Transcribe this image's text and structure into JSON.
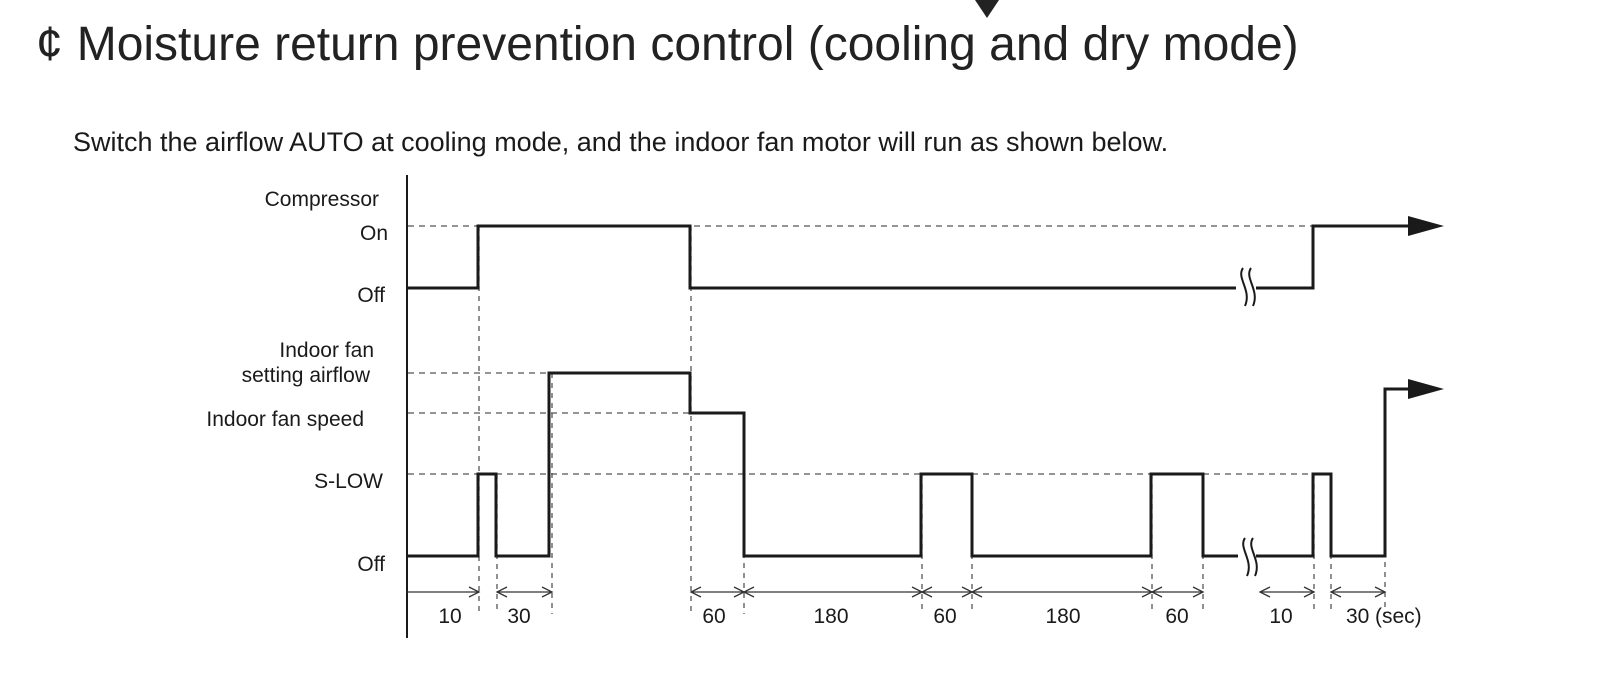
{
  "title": {
    "glyph": "¢",
    "text": "Moisture return prevention control (cooling and dry mode)"
  },
  "subtitle": "Switch the airflow AUTO at cooling mode, and the indoor fan motor will run as shown below.",
  "labels": {
    "compressor": "Compressor",
    "comp_on": "On",
    "comp_off": "Off",
    "fan_setting_line1": "Indoor fan",
    "fan_setting_line2": "setting airflow",
    "fan_speed": "Indoor fan speed",
    "s_low": "S-LOW",
    "fan_off": "Off"
  },
  "intervals": [
    {
      "label": "10"
    },
    {
      "label": "30"
    },
    {
      "label": "60"
    },
    {
      "label": "180"
    },
    {
      "label": "60"
    },
    {
      "label": "180"
    },
    {
      "label": "60"
    },
    {
      "label": "10"
    },
    {
      "label": "30"
    }
  ],
  "unit": "(sec)",
  "colors": {
    "line": "#1a1a1a",
    "dashed": "#555555",
    "text": "#1a1a1a"
  }
}
